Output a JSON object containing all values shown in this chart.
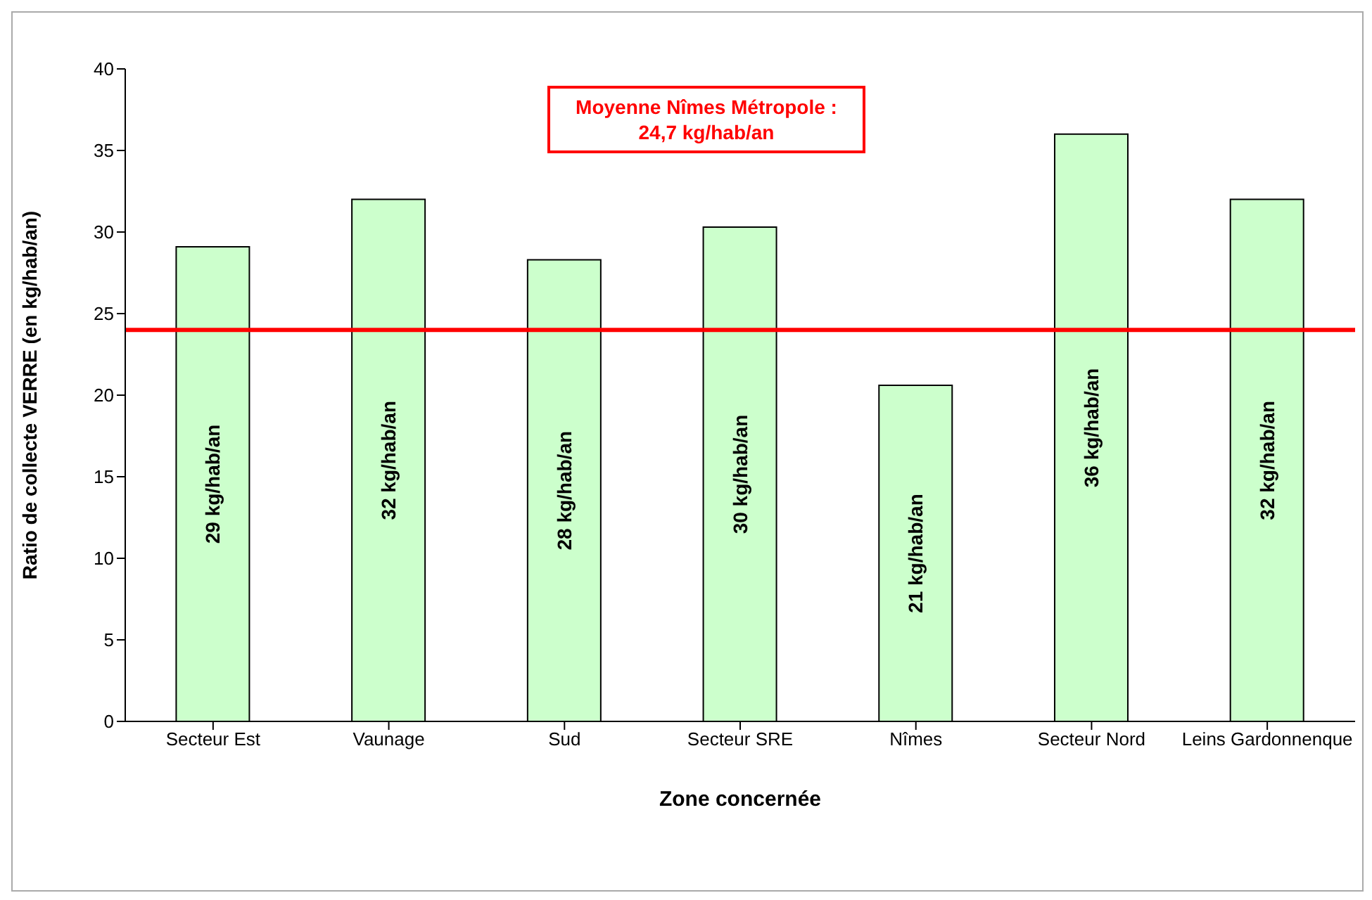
{
  "chart_data": {
    "type": "bar",
    "xlabel": "Zone concernée",
    "ylabel": "Ratio de collecte VERRE (en kg/hab/an)",
    "categories": [
      "Secteur Est",
      "Vaunage",
      "Sud",
      "Secteur SRE",
      "Nîmes",
      "Secteur Nord",
      "Leins Gardonnenque"
    ],
    "values": [
      29.1,
      32.0,
      28.3,
      30.3,
      20.6,
      36.0,
      32.0
    ],
    "value_labels": [
      "29 kg/hab/an",
      "32 kg/hab/an",
      "28 kg/hab/an",
      "30 kg/hab/an",
      "21 kg/hab/an",
      "36 kg/hab/an",
      "32 kg/hab/an"
    ],
    "color": "#ccffcc",
    "ylim": [
      0,
      40
    ],
    "yticks": [
      0,
      5,
      10,
      15,
      20,
      25,
      30,
      35,
      40
    ],
    "grid": false,
    "legend": false,
    "ref_lines": [
      {
        "axis": "y",
        "value": 24,
        "color": "#ff0000"
      }
    ],
    "annotations": [
      "Moyenne Nîmes Métropole :",
      "24,7 kg/hab/an"
    ]
  }
}
